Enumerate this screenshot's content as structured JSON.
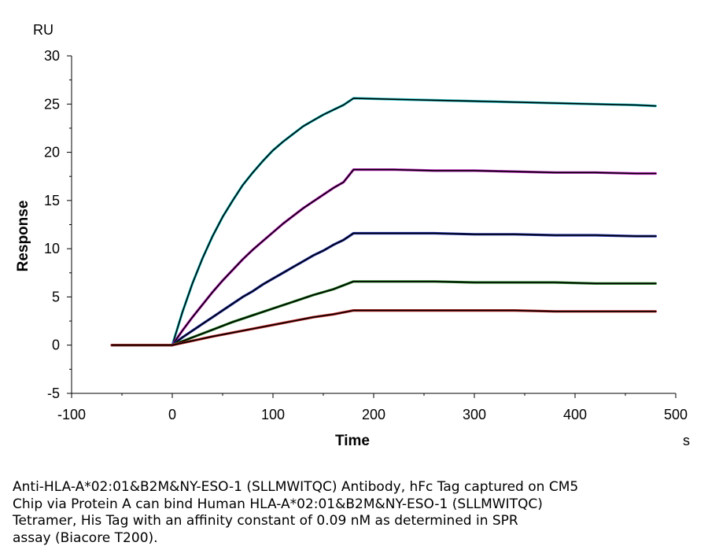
{
  "chart_data": {
    "type": "line",
    "title": "",
    "xlabel": "Time",
    "ylabel": "Response",
    "x_unit": "s",
    "y_unit": "RU",
    "xlim": [
      -100,
      500
    ],
    "ylim": [
      -5,
      30
    ],
    "x_ticks": [
      -100,
      0,
      100,
      200,
      300,
      400,
      500
    ],
    "y_ticks": [
      -5,
      0,
      5,
      10,
      15,
      20,
      25,
      30
    ],
    "grid": false,
    "legend": "none",
    "series": [
      {
        "color": "#22c3c8",
        "fit_color": "#000000",
        "x": [
          -60,
          0,
          10,
          20,
          30,
          40,
          50,
          60,
          70,
          80,
          90,
          100,
          110,
          120,
          130,
          140,
          150,
          160,
          170,
          180,
          220,
          260,
          300,
          340,
          380,
          420,
          460,
          480
        ],
        "y": [
          0,
          0,
          3.4,
          6.4,
          9.0,
          11.3,
          13.3,
          15.0,
          16.6,
          17.9,
          19.1,
          20.2,
          21.1,
          21.9,
          22.7,
          23.3,
          23.9,
          24.4,
          24.9,
          25.6,
          25.5,
          25.4,
          25.3,
          25.2,
          25.1,
          25.0,
          24.9,
          24.8
        ]
      },
      {
        "color": "#c020c0",
        "fit_color": "#000000",
        "x": [
          -60,
          0,
          10,
          20,
          30,
          40,
          50,
          60,
          70,
          80,
          90,
          100,
          110,
          120,
          130,
          140,
          150,
          160,
          170,
          180,
          220,
          260,
          300,
          340,
          380,
          420,
          460,
          480
        ],
        "y": [
          0,
          0,
          1.5,
          2.9,
          4.2,
          5.5,
          6.7,
          7.8,
          8.9,
          9.9,
          10.8,
          11.7,
          12.6,
          13.4,
          14.2,
          14.9,
          15.6,
          16.3,
          16.9,
          18.2,
          18.2,
          18.1,
          18.1,
          18.0,
          17.9,
          17.9,
          17.8,
          17.8
        ]
      },
      {
        "color": "#2030b0",
        "fit_color": "#000000",
        "x": [
          -60,
          0,
          10,
          20,
          30,
          40,
          50,
          60,
          70,
          80,
          90,
          100,
          110,
          120,
          130,
          140,
          150,
          160,
          170,
          180,
          220,
          260,
          300,
          340,
          380,
          420,
          460,
          480
        ],
        "y": [
          0,
          0,
          0.8,
          1.5,
          2.2,
          2.9,
          3.6,
          4.3,
          5.0,
          5.6,
          6.3,
          6.9,
          7.5,
          8.1,
          8.7,
          9.3,
          9.8,
          10.4,
          10.9,
          11.6,
          11.6,
          11.6,
          11.5,
          11.5,
          11.4,
          11.4,
          11.3,
          11.3
        ]
      },
      {
        "color": "#208020",
        "fit_color": "#000000",
        "x": [
          -60,
          0,
          20,
          40,
          60,
          80,
          100,
          120,
          140,
          160,
          180,
          220,
          260,
          300,
          340,
          380,
          420,
          460,
          480
        ],
        "y": [
          0,
          0,
          0.8,
          1.6,
          2.4,
          3.1,
          3.8,
          4.5,
          5.2,
          5.8,
          6.6,
          6.6,
          6.6,
          6.5,
          6.5,
          6.5,
          6.4,
          6.4,
          6.4
        ]
      },
      {
        "color": "#c02020",
        "fit_color": "#000000",
        "x": [
          -60,
          0,
          20,
          40,
          60,
          80,
          100,
          120,
          140,
          160,
          180,
          220,
          260,
          300,
          340,
          380,
          420,
          460,
          480
        ],
        "y": [
          0,
          0,
          0.45,
          0.9,
          1.3,
          1.7,
          2.1,
          2.5,
          2.9,
          3.2,
          3.6,
          3.6,
          3.6,
          3.6,
          3.6,
          3.5,
          3.5,
          3.5,
          3.5
        ]
      }
    ]
  },
  "caption": [
    "Anti-HLA-A*02:01&B2M&NY-ESO-1 (SLLMWITQC) Antibody, hFc Tag captured on CM5",
    "Chip via Protein A can bind Human HLA-A*02:01&B2M&NY-ESO-1 (SLLMWITQC)",
    "Tetramer, His Tag with an affinity constant of 0.09 nM as determined in SPR",
    "assay (Biacore T200)."
  ]
}
